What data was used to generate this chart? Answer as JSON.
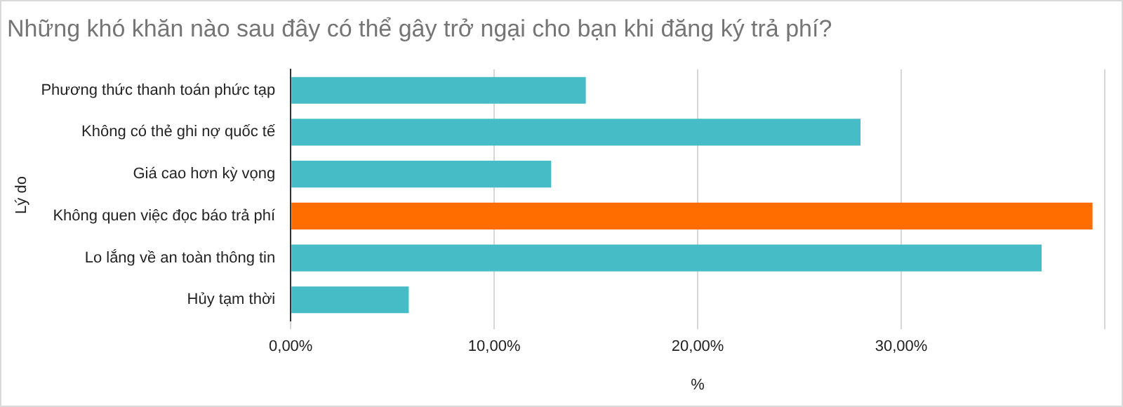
{
  "chart_data": {
    "type": "bar",
    "orientation": "horizontal",
    "title": "Những khó khăn nào sau đây có thể gây trở ngại cho bạn khi đăng ký trả phí?",
    "xlabel": "%",
    "ylabel": "Lý do",
    "categories": [
      "Phương thức thanh toán phức tạp",
      "Không có thẻ ghi nợ quốc tế",
      "Giá cao hơn kỳ vọng",
      "Không quen việc đọc báo trả phí",
      "Lo lắng về an toàn thông tin",
      "Hủy tạm thời"
    ],
    "values": [
      14.5,
      28.0,
      12.8,
      39.4,
      36.9,
      5.8
    ],
    "colors": [
      "#46bdc6",
      "#46bdc6",
      "#46bdc6",
      "#ff6d01",
      "#46bdc6",
      "#46bdc6"
    ],
    "xlim": [
      0,
      40
    ],
    "xticks": [
      {
        "value": 0,
        "label": "0,00%"
      },
      {
        "value": 10,
        "label": "10,00%"
      },
      {
        "value": 20,
        "label": "20,00%"
      },
      {
        "value": 30,
        "label": "30,00%"
      },
      {
        "value": 40,
        "label": null
      }
    ],
    "grid": "x",
    "legend": false
  }
}
